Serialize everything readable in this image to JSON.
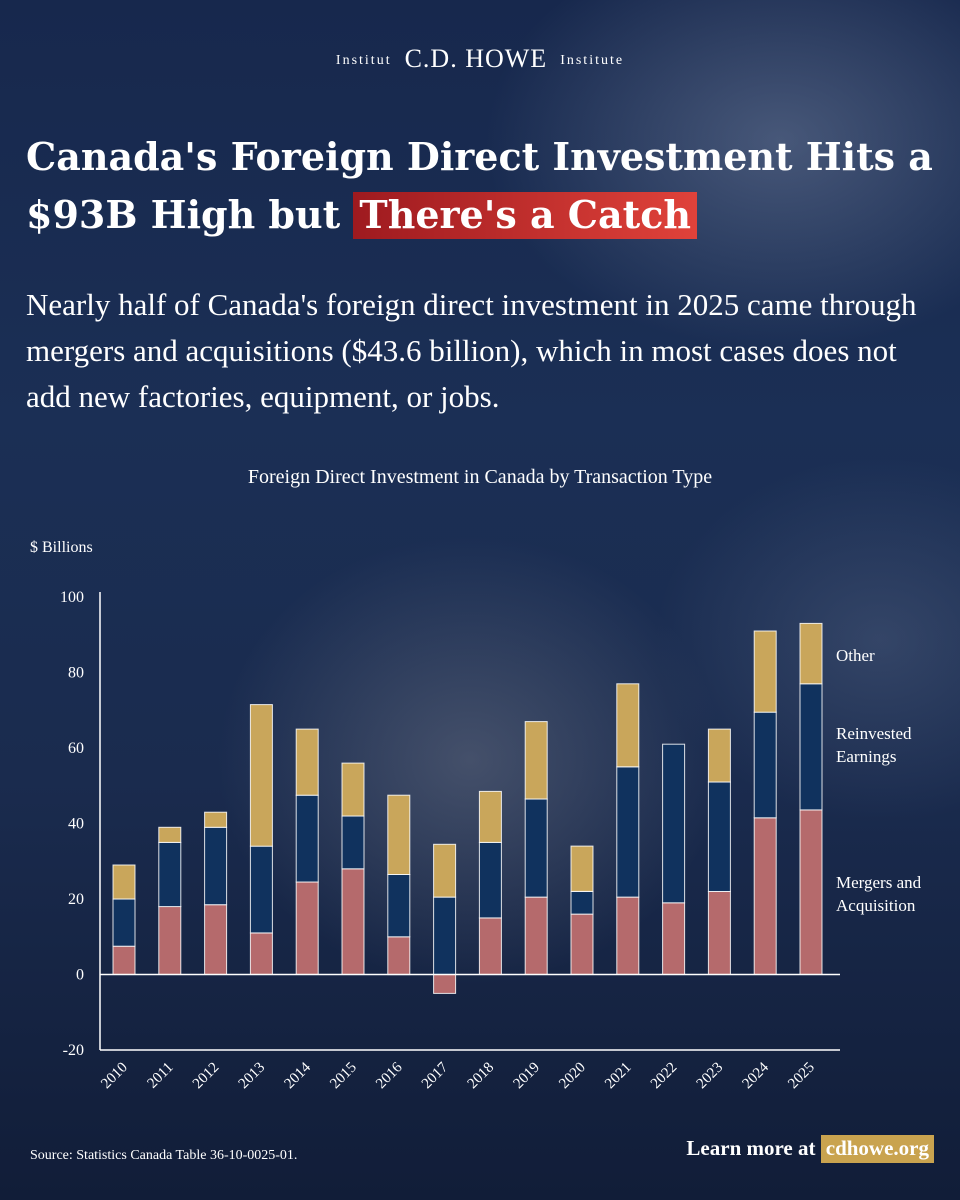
{
  "brand": {
    "left": "Institut",
    "name": "C.D. HOWE",
    "right": "Institute"
  },
  "headline": {
    "main": "Canada's Foreign Direct Investment Hits a $93B High but",
    "highlight": "There's a Catch"
  },
  "subheadline": "Nearly half of Canada's foreign direct investment in 2025 came through mergers and acquisitions ($43.6 billion), which in most cases does not add new factories, equipment, or jobs.",
  "footer": {
    "source": "Source: Statistics Canada Table 36-10-0025-01.",
    "learn_more": "Learn more at",
    "site": "cdhowe.org"
  },
  "colors": {
    "mergers": "#b56a6c",
    "reinvested": "#10325e",
    "other": "#c9a65b",
    "highlight": "#d3322f"
  },
  "chart_data": {
    "type": "bar",
    "stacked": true,
    "title": "Foreign Direct Investment in Canada by Transaction Type",
    "ylabel": "$ Billions",
    "ylim": [
      -20,
      100
    ],
    "yticks": [
      -20,
      0,
      20,
      40,
      60,
      80,
      100
    ],
    "grid": false,
    "legend_position": "right",
    "categories": [
      "2010",
      "2011",
      "2012",
      "2013",
      "2014",
      "2015",
      "2016",
      "2017",
      "2018",
      "2019",
      "2020",
      "2021",
      "2022",
      "2023",
      "2024",
      "2025"
    ],
    "series": [
      {
        "name": "Mergers and Acquisition",
        "color": "#b56a6c",
        "values": [
          7.5,
          18,
          18.5,
          11,
          24.5,
          28,
          10,
          -5,
          15,
          20.5,
          16,
          20.5,
          19,
          22,
          41.5,
          43.6
        ]
      },
      {
        "name": "Reinvested Earnings",
        "color": "#10325e",
        "values": [
          12.5,
          17,
          20.5,
          23,
          23,
          14,
          16.5,
          20.5,
          20,
          26,
          6,
          34.5,
          42,
          29,
          28,
          33.4
        ]
      },
      {
        "name": "Other",
        "color": "#c9a65b",
        "values": [
          9,
          4,
          4,
          37.5,
          17.5,
          14,
          21,
          14,
          13.5,
          20.5,
          12,
          22,
          0,
          14,
          21.5,
          16
        ]
      }
    ]
  }
}
